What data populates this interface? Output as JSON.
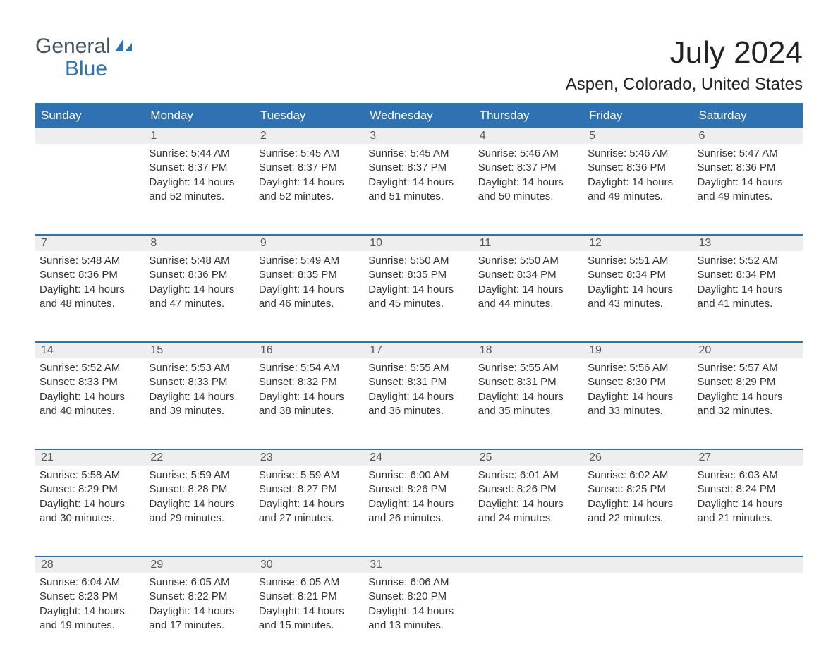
{
  "logo": {
    "word1": "General",
    "word2": "Blue",
    "tri_color": "#2f71b3",
    "text_top_color": "#455560"
  },
  "title": "July 2024",
  "location": "Aspen, Colorado, United States",
  "colors": {
    "header_bg": "#2f71b3",
    "header_fg": "#ffffff",
    "strip_bg": "#eeeeee",
    "week_border": "#2f71b3",
    "body_text": "#333333",
    "daynum_text": "#555555"
  },
  "daysOfWeek": [
    "Sunday",
    "Monday",
    "Tuesday",
    "Wednesday",
    "Thursday",
    "Friday",
    "Saturday"
  ],
  "weeks": [
    [
      null,
      {
        "n": "1",
        "sunrise": "5:44 AM",
        "sunset": "8:37 PM",
        "daylight": "14 hours and 52 minutes."
      },
      {
        "n": "2",
        "sunrise": "5:45 AM",
        "sunset": "8:37 PM",
        "daylight": "14 hours and 52 minutes."
      },
      {
        "n": "3",
        "sunrise": "5:45 AM",
        "sunset": "8:37 PM",
        "daylight": "14 hours and 51 minutes."
      },
      {
        "n": "4",
        "sunrise": "5:46 AM",
        "sunset": "8:37 PM",
        "daylight": "14 hours and 50 minutes."
      },
      {
        "n": "5",
        "sunrise": "5:46 AM",
        "sunset": "8:36 PM",
        "daylight": "14 hours and 49 minutes."
      },
      {
        "n": "6",
        "sunrise": "5:47 AM",
        "sunset": "8:36 PM",
        "daylight": "14 hours and 49 minutes."
      }
    ],
    [
      {
        "n": "7",
        "sunrise": "5:48 AM",
        "sunset": "8:36 PM",
        "daylight": "14 hours and 48 minutes."
      },
      {
        "n": "8",
        "sunrise": "5:48 AM",
        "sunset": "8:36 PM",
        "daylight": "14 hours and 47 minutes."
      },
      {
        "n": "9",
        "sunrise": "5:49 AM",
        "sunset": "8:35 PM",
        "daylight": "14 hours and 46 minutes."
      },
      {
        "n": "10",
        "sunrise": "5:50 AM",
        "sunset": "8:35 PM",
        "daylight": "14 hours and 45 minutes."
      },
      {
        "n": "11",
        "sunrise": "5:50 AM",
        "sunset": "8:34 PM",
        "daylight": "14 hours and 44 minutes."
      },
      {
        "n": "12",
        "sunrise": "5:51 AM",
        "sunset": "8:34 PM",
        "daylight": "14 hours and 43 minutes."
      },
      {
        "n": "13",
        "sunrise": "5:52 AM",
        "sunset": "8:34 PM",
        "daylight": "14 hours and 41 minutes."
      }
    ],
    [
      {
        "n": "14",
        "sunrise": "5:52 AM",
        "sunset": "8:33 PM",
        "daylight": "14 hours and 40 minutes."
      },
      {
        "n": "15",
        "sunrise": "5:53 AM",
        "sunset": "8:33 PM",
        "daylight": "14 hours and 39 minutes."
      },
      {
        "n": "16",
        "sunrise": "5:54 AM",
        "sunset": "8:32 PM",
        "daylight": "14 hours and 38 minutes."
      },
      {
        "n": "17",
        "sunrise": "5:55 AM",
        "sunset": "8:31 PM",
        "daylight": "14 hours and 36 minutes."
      },
      {
        "n": "18",
        "sunrise": "5:55 AM",
        "sunset": "8:31 PM",
        "daylight": "14 hours and 35 minutes."
      },
      {
        "n": "19",
        "sunrise": "5:56 AM",
        "sunset": "8:30 PM",
        "daylight": "14 hours and 33 minutes."
      },
      {
        "n": "20",
        "sunrise": "5:57 AM",
        "sunset": "8:29 PM",
        "daylight": "14 hours and 32 minutes."
      }
    ],
    [
      {
        "n": "21",
        "sunrise": "5:58 AM",
        "sunset": "8:29 PM",
        "daylight": "14 hours and 30 minutes."
      },
      {
        "n": "22",
        "sunrise": "5:59 AM",
        "sunset": "8:28 PM",
        "daylight": "14 hours and 29 minutes."
      },
      {
        "n": "23",
        "sunrise": "5:59 AM",
        "sunset": "8:27 PM",
        "daylight": "14 hours and 27 minutes."
      },
      {
        "n": "24",
        "sunrise": "6:00 AM",
        "sunset": "8:26 PM",
        "daylight": "14 hours and 26 minutes."
      },
      {
        "n": "25",
        "sunrise": "6:01 AM",
        "sunset": "8:26 PM",
        "daylight": "14 hours and 24 minutes."
      },
      {
        "n": "26",
        "sunrise": "6:02 AM",
        "sunset": "8:25 PM",
        "daylight": "14 hours and 22 minutes."
      },
      {
        "n": "27",
        "sunrise": "6:03 AM",
        "sunset": "8:24 PM",
        "daylight": "14 hours and 21 minutes."
      }
    ],
    [
      {
        "n": "28",
        "sunrise": "6:04 AM",
        "sunset": "8:23 PM",
        "daylight": "14 hours and 19 minutes."
      },
      {
        "n": "29",
        "sunrise": "6:05 AM",
        "sunset": "8:22 PM",
        "daylight": "14 hours and 17 minutes."
      },
      {
        "n": "30",
        "sunrise": "6:05 AM",
        "sunset": "8:21 PM",
        "daylight": "14 hours and 15 minutes."
      },
      {
        "n": "31",
        "sunrise": "6:06 AM",
        "sunset": "8:20 PM",
        "daylight": "14 hours and 13 minutes."
      },
      null,
      null,
      null
    ]
  ],
  "labels": {
    "sunrise": "Sunrise: ",
    "sunset": "Sunset: ",
    "daylight": "Daylight: "
  }
}
